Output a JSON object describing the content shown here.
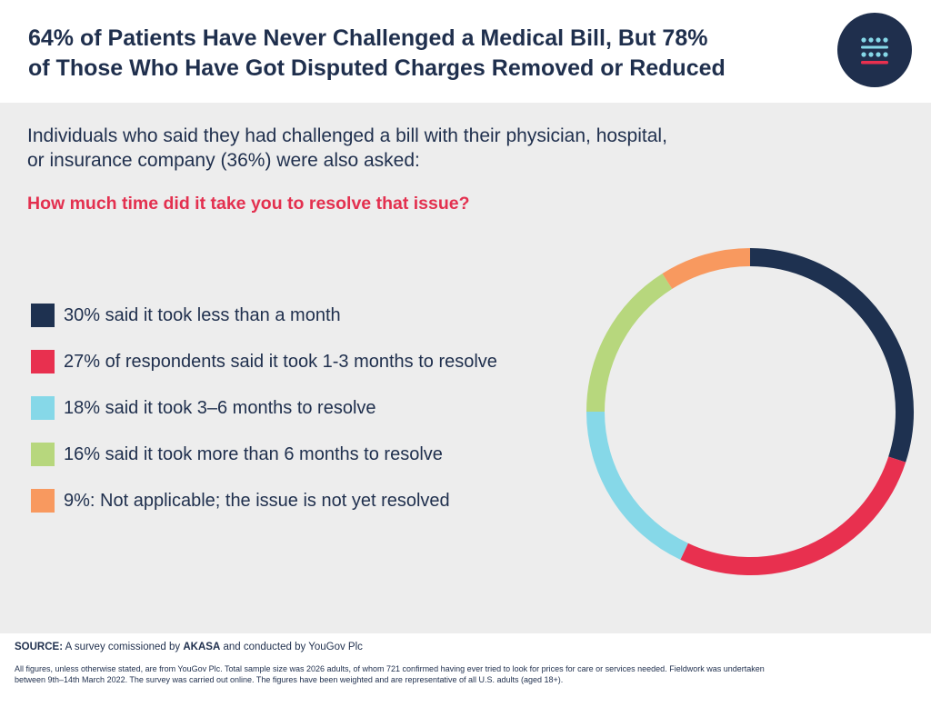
{
  "header": {
    "title_line1": "64% of Patients Have Never Challenged a Medical Bill, But 78%",
    "title_line2": "of Those Who Have Got Disputed Charges Removed or Reduced",
    "logo_icon": "dots-and-lines-logo-icon"
  },
  "intro": {
    "line1": "Individuals who said they had challenged a bill with their physician, hospital,",
    "line2": "or insurance company (36%) were also asked:"
  },
  "question": "How much time did it take you to resolve that issue?",
  "chart_data": {
    "type": "pie",
    "style": "donut",
    "title": "How much time did it take you to resolve that issue?",
    "categories": [
      "Less than a month",
      "1-3 months",
      "3–6 months",
      "More than 6 months",
      "Not applicable; not yet resolved"
    ],
    "values": [
      30,
      27,
      18,
      16,
      9
    ],
    "unit": "%",
    "colors": [
      "#1e3150",
      "#e8304f",
      "#86d8e8",
      "#b7d77d",
      "#f8995f"
    ],
    "legend": [
      {
        "label": "30% said it took less than a month",
        "color": "#1e3150"
      },
      {
        "label": "27% of respondents said it took 1-3 months to resolve",
        "color": "#e8304f"
      },
      {
        "label": "18% said it took 3–6 months to resolve",
        "color": "#86d8e8"
      },
      {
        "label": "16% said it took more than 6 months to resolve",
        "color": "#b7d77d"
      },
      {
        "label": "9%: Not applicable; the issue is not yet resolved",
        "color": "#f8995f"
      }
    ],
    "legend_position": "left"
  },
  "footer": {
    "source_label": "SOURCE:",
    "source_text_1": "A survey comissioned by",
    "source_brand": "AKASA",
    "source_text_2": "and conducted by YouGov Plc",
    "footnote_line1": "All figures, unless otherwise stated, are from YouGov Plc. Total sample size was 2026 adults, of whom 721 confirmed having ever tried to look for prices for care or services needed. Fieldwork was undertaken",
    "footnote_line2": "between 9th–14th March 2022. The survey was carried out online. The figures have been weighted and are representative of all U.S. adults (aged 18+)."
  },
  "colors": {
    "navy": "#1f2f4d",
    "accent_red": "#e3304f",
    "panel_bg": "#ededed"
  }
}
